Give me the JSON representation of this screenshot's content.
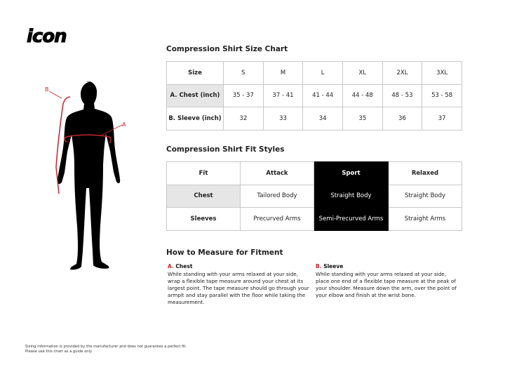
{
  "logo": "icon",
  "figure": {
    "label_a": "A",
    "label_b": "B"
  },
  "size_chart": {
    "title": "Compression Shirt Size Chart",
    "header": [
      "Size",
      "S",
      "M",
      "L",
      "XL",
      "2XL",
      "3XL"
    ],
    "rows": [
      [
        "A. Chest (inch)",
        "35 - 37",
        "37 - 41",
        "41 - 44",
        "44 - 48",
        "48 - 53",
        "53 - 58"
      ],
      [
        "B. Sleeve (inch)",
        "32",
        "33",
        "34",
        "35",
        "36",
        "37"
      ]
    ]
  },
  "fit_chart": {
    "title": "Compression Shirt Fit Styles",
    "header": [
      "Fit",
      "Attack",
      "Sport",
      "Relaxed"
    ],
    "rows": [
      [
        "Chest",
        "Tailored Body",
        "Straight Body",
        "Straight Body"
      ],
      [
        "Sleeves",
        "Precurved Arms",
        "Semi-Precurved Arms",
        "Straight Arms"
      ]
    ],
    "highlight_color": "#000000"
  },
  "measure": {
    "title": "How to Measure for Fitment",
    "chest": {
      "letter": "A.",
      "name": "Chest",
      "text": "While standing with your arms relaxed at your side, wrap a flexible tape measure around your chest at its largest point. The tape measure should go through your armpit and stay parallel with the floor while taking the measurement."
    },
    "sleeve": {
      "letter": "B.",
      "name": "Sleeve",
      "text": "While standing with your arms relaxed at your side, place one end of a flexible tape measure at the peak of your shoulder. Measure down the arm, over the point of your elbow and finish at the wrist bone."
    }
  },
  "footer": {
    "line1": "Sizing information is provided by the manufacturer and does not guarantee a perfect fit.",
    "line2": "Please use this chart as a guide only"
  },
  "accent": "#c0262d"
}
